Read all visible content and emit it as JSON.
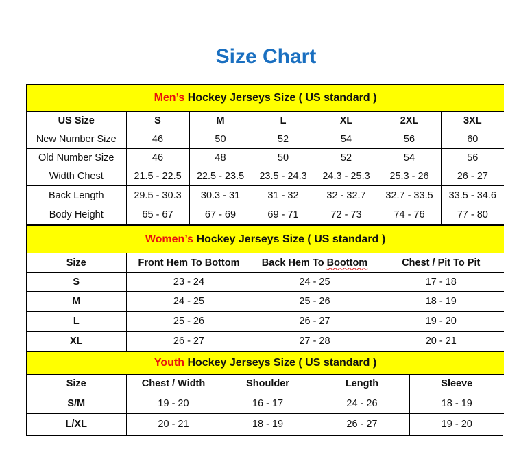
{
  "title": "Size Chart",
  "colors": {
    "title": "#1a6fc0",
    "section_bg": "#ffff00",
    "highlight": "#e8110e"
  },
  "mens": {
    "heading_highlight": "Men’s",
    "heading_rest": " Hockey Jerseys Size ( US standard )",
    "columns": [
      "US Size",
      "S",
      "M",
      "L",
      "XL",
      "2XL",
      "3XL"
    ],
    "rows": [
      [
        "New Number Size",
        "46",
        "50",
        "52",
        "54",
        "56",
        "60"
      ],
      [
        "Old Number Size",
        "46",
        "48",
        "50",
        "52",
        "54",
        "56"
      ],
      [
        "Width Chest",
        "21.5 - 22.5",
        "22.5 - 23.5",
        "23.5 - 24.3",
        "24.3 - 25.3",
        "25.3 - 26",
        "26 - 27"
      ],
      [
        "Back Length",
        "29.5 - 30.3",
        "30.3 - 31",
        "31 - 32",
        "32 - 32.7",
        "32.7 - 33.5",
        "33.5 - 34.6"
      ],
      [
        "Body Height",
        "65 - 67",
        "67 - 69",
        "69 - 71",
        "72 - 73",
        "74 - 76",
        "77 - 80"
      ]
    ]
  },
  "womens": {
    "heading_highlight": "Women’s",
    "heading_rest": " Hockey Jerseys Size ( US standard )",
    "columns": [
      "Size",
      "Front Hem To Bottom",
      "Back Hem To Boottom",
      "Chest / Pit To Pit"
    ],
    "rows": [
      [
        "S",
        "23 - 24",
        "24 - 25",
        "17 - 18"
      ],
      [
        "M",
        "24 - 25",
        "25 - 26",
        "18 - 19"
      ],
      [
        "L",
        "25 - 26",
        "26 - 27",
        "19 - 20"
      ],
      [
        "XL",
        "26 - 27",
        "27 - 28",
        "20 - 21"
      ]
    ]
  },
  "youth": {
    "heading_highlight": "Youth",
    "heading_rest": " Hockey Jerseys Size ( US standard )",
    "columns": [
      "Size",
      "Chest / Width",
      "Shoulder",
      "Length",
      "Sleeve"
    ],
    "rows": [
      [
        "S/M",
        "19 - 20",
        "16 - 17",
        "24 - 26",
        "18 - 19"
      ],
      [
        "L/XL",
        "20 - 21",
        "18 - 19",
        "26 - 27",
        "19 - 20"
      ]
    ]
  }
}
